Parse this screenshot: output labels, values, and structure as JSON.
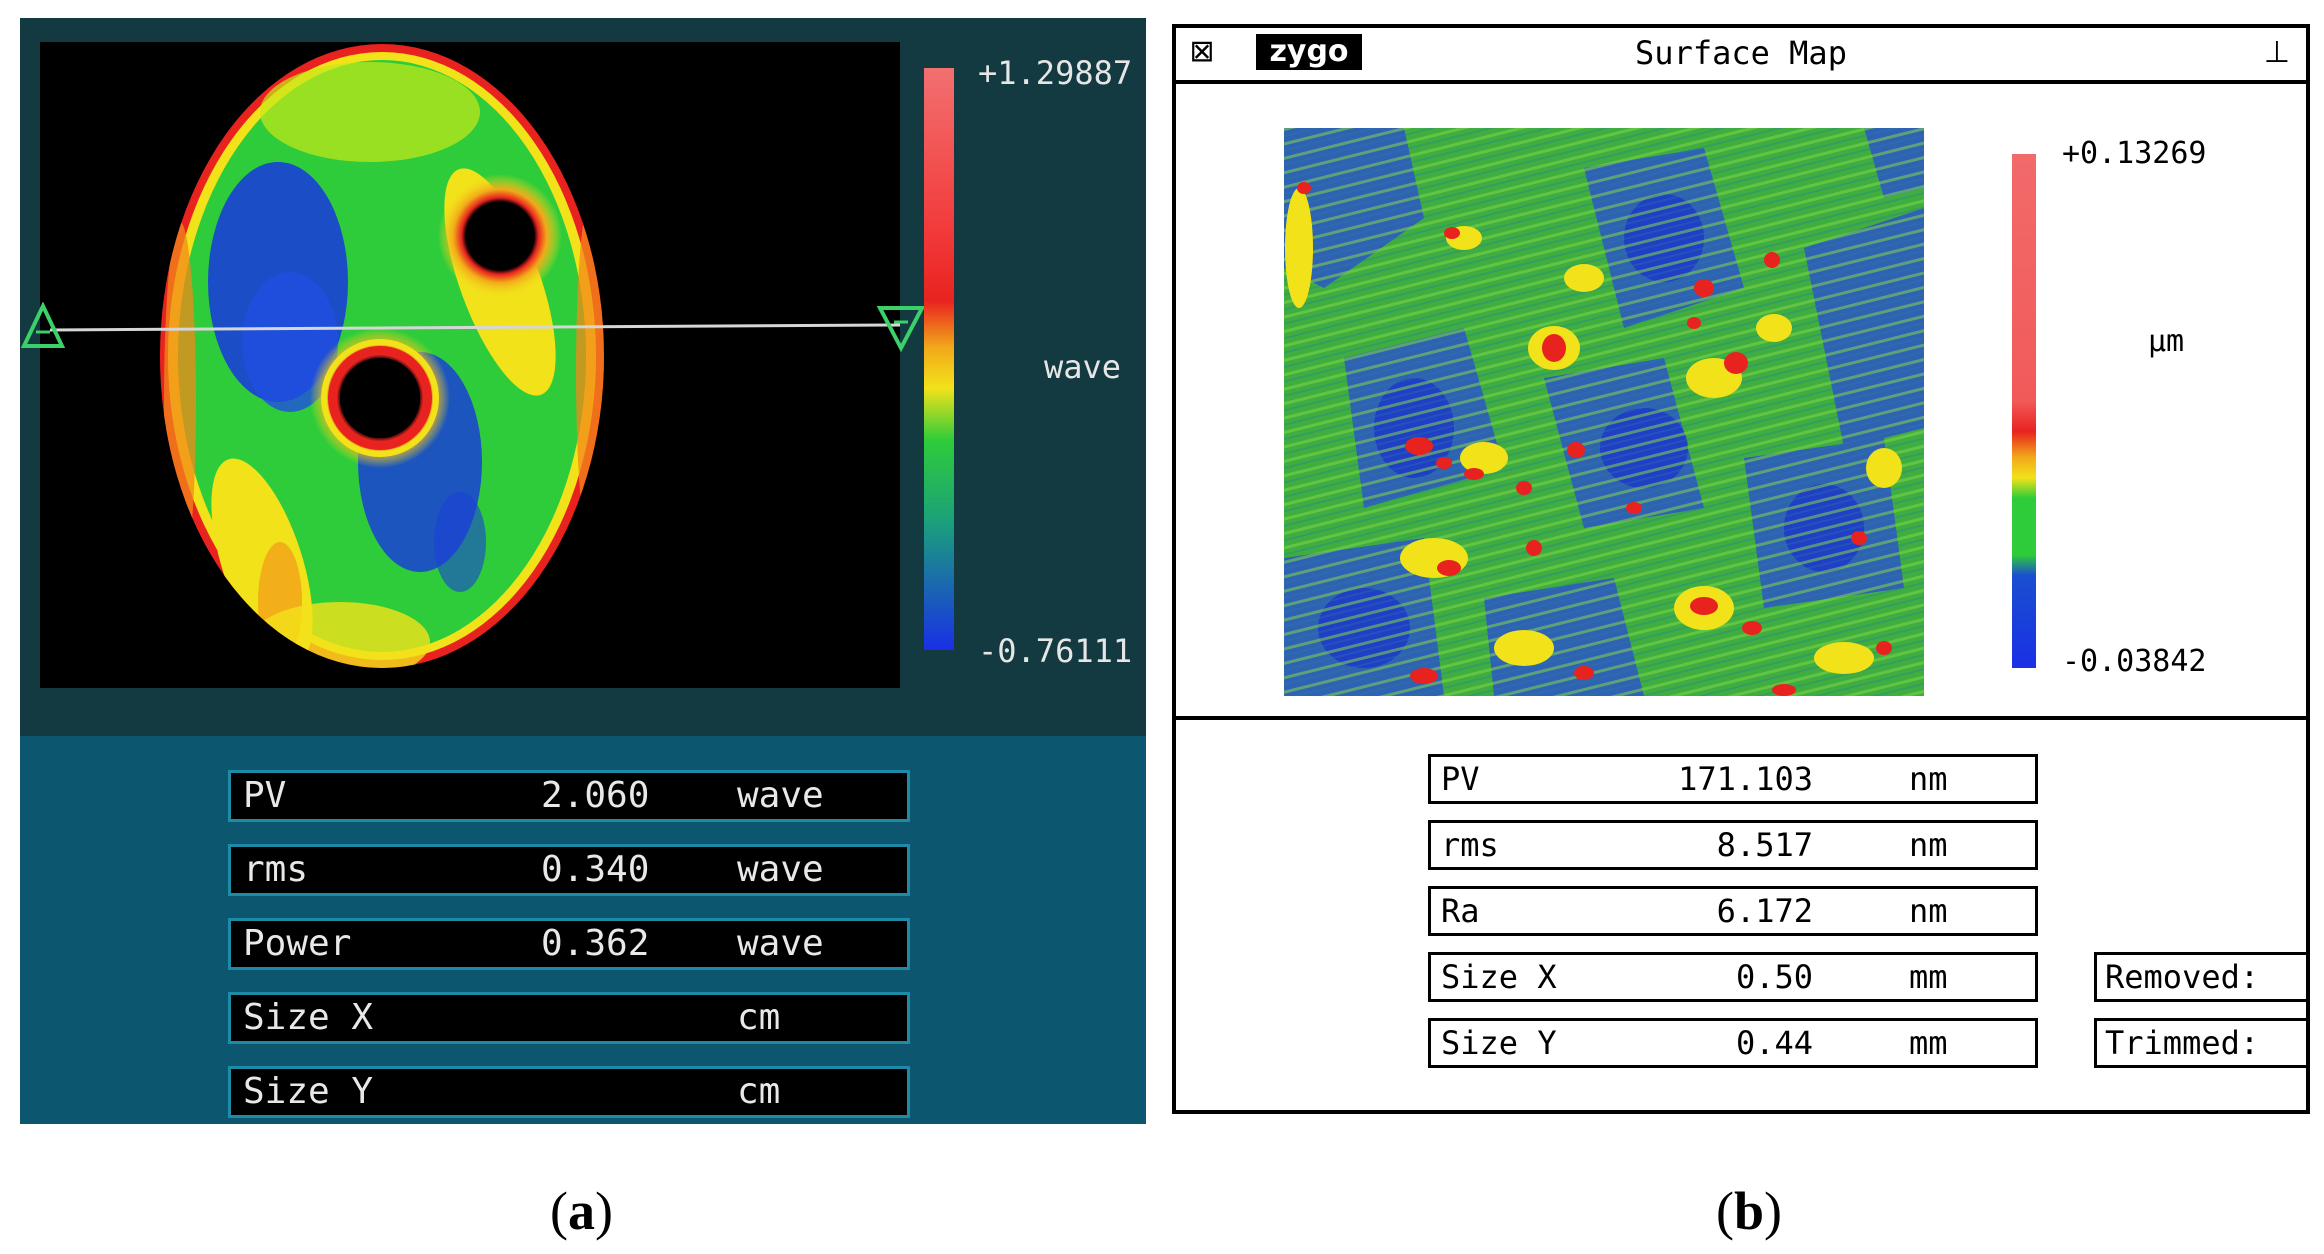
{
  "panel_a": {
    "scale": {
      "max": "+1.29887",
      "min": "-0.76111",
      "unit": "wave"
    },
    "rows": [
      {
        "label": "PV",
        "value": "2.060",
        "unit": "wave"
      },
      {
        "label": "rms",
        "value": "0.340",
        "unit": "wave"
      },
      {
        "label": "Power",
        "value": "0.362",
        "unit": "wave"
      },
      {
        "label": "Size X",
        "value": "",
        "unit": "cm"
      },
      {
        "label": "Size Y",
        "value": "",
        "unit": "cm"
      }
    ],
    "caption": "(a)"
  },
  "panel_b": {
    "window": {
      "logo": "zygo",
      "title": "Surface Map"
    },
    "scale": {
      "max": "+0.13269",
      "min": "-0.03842",
      "unit": "μm"
    },
    "rows": [
      {
        "label": "PV",
        "value": "171.103",
        "unit": "nm"
      },
      {
        "label": "rms",
        "value": "8.517",
        "unit": "nm"
      },
      {
        "label": "Ra",
        "value": "6.172",
        "unit": "nm"
      },
      {
        "label": "Size X",
        "value": "0.50",
        "unit": "mm"
      },
      {
        "label": "Size Y",
        "value": "0.44",
        "unit": "mm"
      }
    ],
    "side": {
      "removed_label": "Removed:",
      "trimmed_label": "Trimmed:"
    },
    "caption": "(b)"
  },
  "colors": {
    "panel_a_bg": "#123a40",
    "panel_a_table_bg": "#0d5670",
    "row_border_a": "#1d8aa6",
    "map_green": "#2ecc3a",
    "map_blue": "#1a3fd6",
    "map_yellow": "#f2e21a",
    "map_red": "#e8231f"
  }
}
